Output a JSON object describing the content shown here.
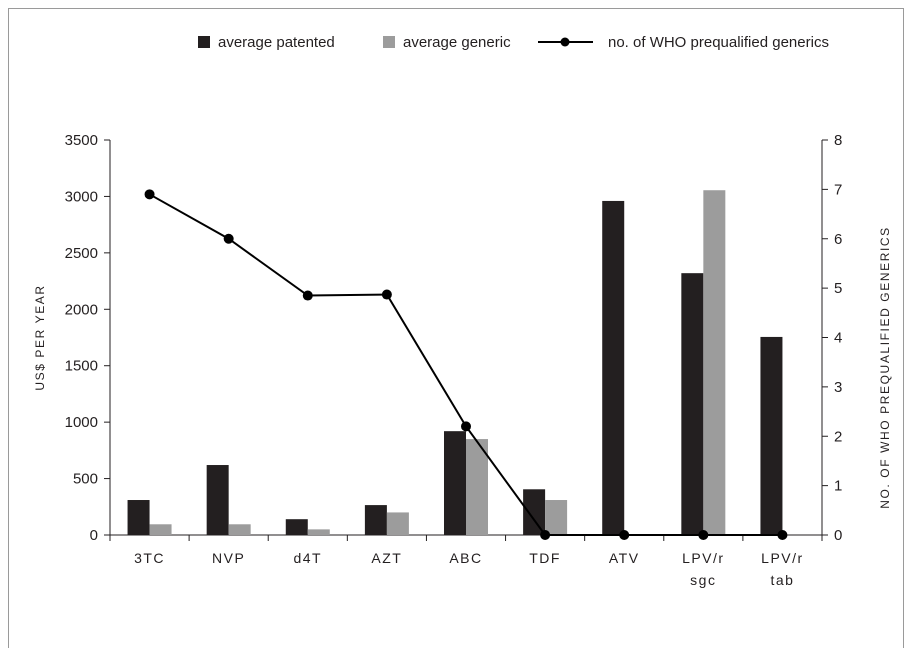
{
  "chart_data": {
    "type": "bar",
    "categories": [
      [
        "3TC"
      ],
      [
        "NVP"
      ],
      [
        "d4T"
      ],
      [
        "AZT"
      ],
      [
        "ABC"
      ],
      [
        "TDF"
      ],
      [
        "ATV"
      ],
      [
        "LPV/r",
        "sgc"
      ],
      [
        "LPV/r",
        "tab"
      ]
    ],
    "series": [
      {
        "name": "average patented",
        "type": "bar",
        "axis": "left",
        "color": "#231f20",
        "values": [
          310,
          620,
          140,
          265,
          920,
          405,
          2960,
          2320,
          1755
        ]
      },
      {
        "name": "average generic",
        "type": "bar",
        "axis": "left",
        "color": "#9c9c9c",
        "values": [
          95,
          95,
          50,
          200,
          850,
          310,
          null,
          3055,
          null
        ]
      },
      {
        "name": "no. of WHO prequalified generics",
        "type": "line",
        "axis": "right",
        "color": "#000000",
        "values": [
          6.9,
          6.0,
          4.85,
          4.87,
          2.2,
          0,
          0,
          0,
          0
        ]
      }
    ],
    "ylabel": "US$ PER YEAR",
    "y2label": "NO. OF WHO PREQUALIFIED GENERICS",
    "ylim": [
      0,
      3500
    ],
    "y2lim": [
      0,
      8
    ],
    "yticks": [
      "0",
      "500",
      "1000",
      "1500",
      "2000",
      "2500",
      "3000",
      "3500"
    ],
    "y2ticks": [
      "0",
      "1",
      "2",
      "3",
      "4",
      "5",
      "6",
      "7",
      "8"
    ],
    "legend": "top",
    "grid": false
  }
}
